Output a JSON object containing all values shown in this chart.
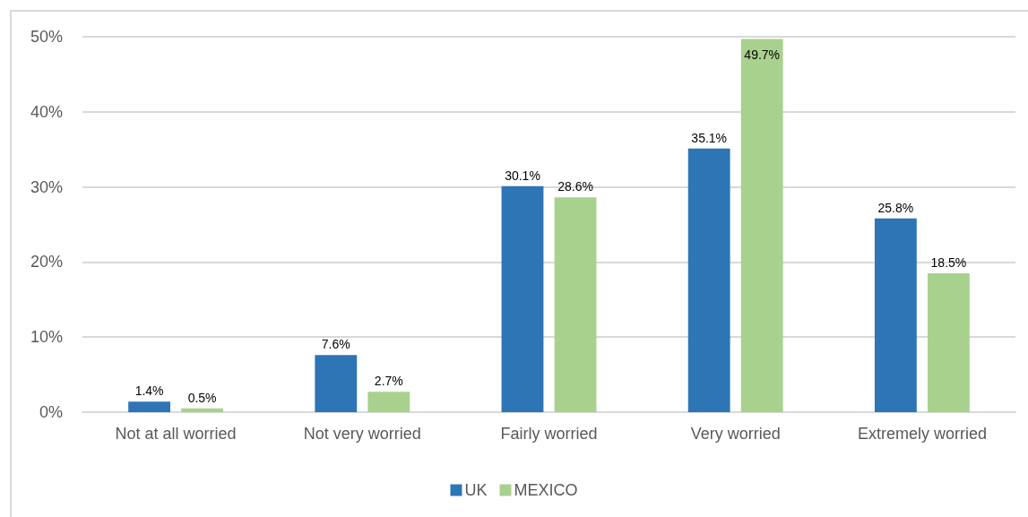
{
  "chart_data": {
    "type": "bar",
    "categories": [
      "Not at all worried",
      "Not very worried",
      "Fairly worried",
      "Very worried",
      "Extremely worried"
    ],
    "series": [
      {
        "name": "UK",
        "color": "#2e75b6",
        "values": [
          1.4,
          7.6,
          30.1,
          35.1,
          25.8
        ],
        "value_labels": [
          "1.4%",
          "7.6%",
          "30.1%",
          "35.1%",
          "25.8%"
        ]
      },
      {
        "name": "MEXICO",
        "color": "#a9d18e",
        "values": [
          0.5,
          2.7,
          28.6,
          49.7,
          18.5
        ],
        "value_labels": [
          "0.5%",
          "2.7%",
          "28.6%",
          "49.7%",
          "18.5%"
        ]
      }
    ],
    "ylim": [
      0,
      50
    ],
    "yticks": [
      {
        "value": 0,
        "label": "0%"
      },
      {
        "value": 10,
        "label": "10%"
      },
      {
        "value": 20,
        "label": "20%"
      },
      {
        "value": 30,
        "label": "30%"
      },
      {
        "value": 40,
        "label": "40%"
      },
      {
        "value": 50,
        "label": "50%"
      }
    ],
    "grid": "y",
    "legend": "bottom"
  }
}
